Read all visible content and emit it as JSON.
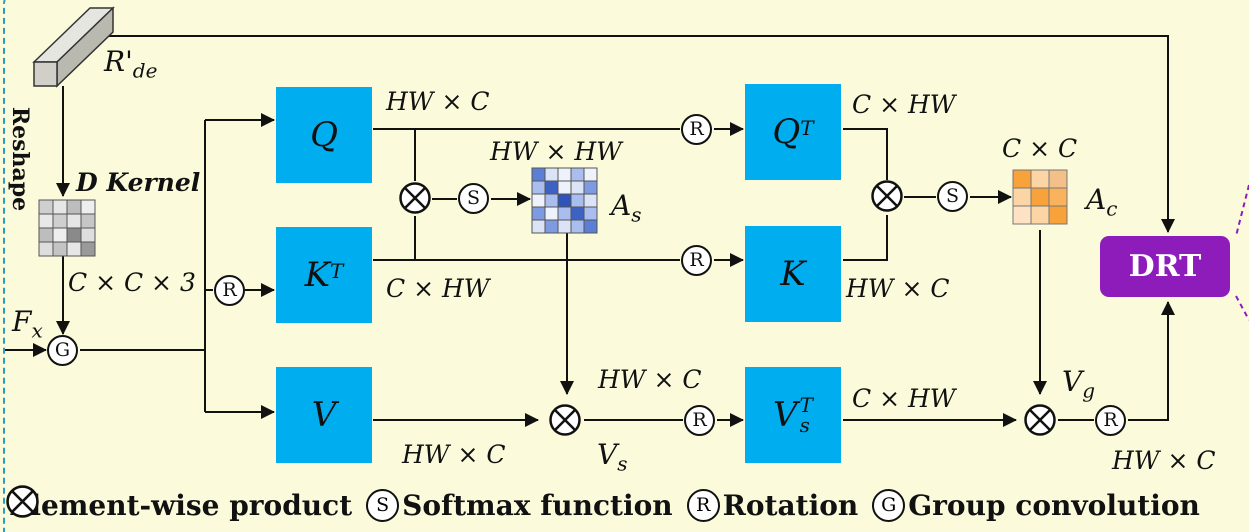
{
  "input": {
    "tensor_label": "R'",
    "tensor_sub": "de",
    "reshape_label": "Reshape",
    "kernel_label": "D Kernel",
    "kernel_dim": "C × C × 3",
    "feature_label": "F",
    "feature_sub": "x"
  },
  "blocks": {
    "q": {
      "main": "Q",
      "sup": "",
      "sub": ""
    },
    "kt": {
      "main": "K",
      "sup": "T",
      "sub": ""
    },
    "v": {
      "main": "V",
      "sup": "",
      "sub": ""
    },
    "qt": {
      "main": "Q",
      "sup": "T",
      "sub": ""
    },
    "k": {
      "main": "K",
      "sup": "",
      "sub": ""
    },
    "vst": {
      "main": "V",
      "sup": "T",
      "sub": "s"
    }
  },
  "dims": {
    "q_out": "HW × C",
    "kt_out": "C × HW",
    "as_dim": "HW × HW",
    "qt_out": "C × HW",
    "k_out": "HW × C",
    "cc_dim": "C × C",
    "v_out": "HW × C",
    "vs_in": "HW × C",
    "vst_out": "C × HW",
    "final": "HW × C"
  },
  "maps": {
    "as_label": "A",
    "as_sub": "s",
    "ac_label": "A",
    "ac_sub": "c",
    "vs_label": "V",
    "vs_sub": "s",
    "vg_label": "V",
    "vg_sub": "g"
  },
  "ops": {
    "softmax": "S",
    "rotation": "R",
    "group": "G"
  },
  "drt_label": "DRT",
  "legend": [
    {
      "symbol": "",
      "text": "Element-wise product"
    },
    {
      "symbol": "S",
      "text": "Softmax function"
    },
    {
      "symbol": "R",
      "text": "Rotation"
    },
    {
      "symbol": "G",
      "text": "Group convolution"
    }
  ],
  "colors": {
    "background": "#fbfbdc",
    "block": "#00aeef",
    "drt": "#8e1cbb",
    "frame": "#2a9dc3"
  }
}
